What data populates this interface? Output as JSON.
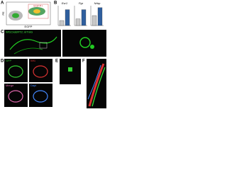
{
  "panels": {
    "A": {
      "letter": "A",
      "x_label": "EGFP",
      "y_label": "PE",
      "gate_label": "EGFP+"
    },
    "B": {
      "letter": "B",
      "colors": [
        "#c8c8c8",
        "#2f5f9e"
      ],
      "charts": [
        {
          "title": "Esr1",
          "values": [
            1,
            3.2
          ],
          "ylim": [
            0,
            4
          ]
        },
        {
          "title": "Pgr",
          "values": [
            1,
            2.4
          ],
          "ylim": [
            0,
            3
          ]
        },
        {
          "title": "Nrbp",
          "values": [
            1,
            1.8
          ],
          "ylim": [
            0,
            2
          ]
        }
      ]
    },
    "C": {
      "letter": "C",
      "label": "Wt1CreERT2; mTmG"
    },
    "D": {
      "letter": "D",
      "labels": [
        "GFP",
        "Wt1",
        "Merge",
        "Dapi"
      ]
    },
    "E": {
      "letter": "E"
    },
    "F": {
      "letter": "F"
    }
  }
}
